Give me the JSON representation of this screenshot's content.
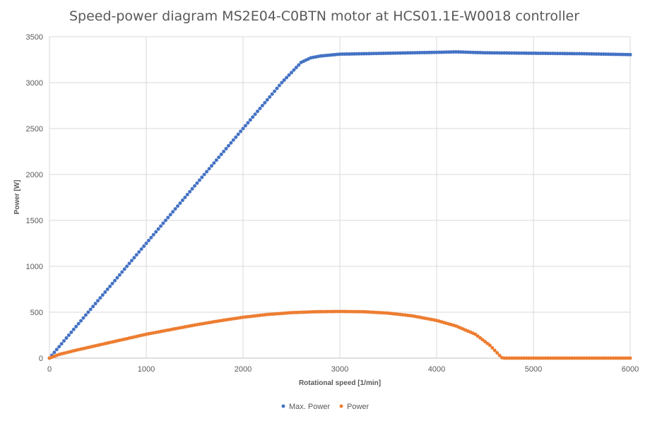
{
  "chart_data": {
    "type": "scatter",
    "title": "Speed-power diagram MS2E04-C0BTN motor at HCS01.1E-W0018 controller",
    "xlabel": "Rotational speed [1/min]",
    "ylabel": "Power [W]",
    "xlim": [
      0,
      6000
    ],
    "ylim": [
      0,
      3500
    ],
    "x_ticks": [
      "0",
      "1000",
      "2000",
      "3000",
      "4000",
      "5000",
      "6000"
    ],
    "y_ticks": [
      "0",
      "500",
      "1000",
      "1500",
      "2000",
      "2500",
      "3000",
      "3500"
    ],
    "grid": true,
    "legend_position": "bottom",
    "series": [
      {
        "name": "Max. Power",
        "color": "#4472C4",
        "points": [
          [
            0,
            0
          ],
          [
            200,
            250
          ],
          [
            400,
            500
          ],
          [
            600,
            750
          ],
          [
            800,
            1000
          ],
          [
            1000,
            1250
          ],
          [
            1200,
            1500
          ],
          [
            1400,
            1750
          ],
          [
            1600,
            2000
          ],
          [
            1800,
            2250
          ],
          [
            2000,
            2500
          ],
          [
            2200,
            2750
          ],
          [
            2400,
            3000
          ],
          [
            2600,
            3220
          ],
          [
            2700,
            3270
          ],
          [
            2800,
            3290
          ],
          [
            3000,
            3310
          ],
          [
            3500,
            3320
          ],
          [
            4000,
            3330
          ],
          [
            4200,
            3335
          ],
          [
            4500,
            3325
          ],
          [
            5000,
            3320
          ],
          [
            5500,
            3315
          ],
          [
            6000,
            3305
          ]
        ]
      },
      {
        "name": "Power",
        "color": "#ED7D31",
        "points": [
          [
            0,
            0
          ],
          [
            100,
            40
          ],
          [
            250,
            80
          ],
          [
            500,
            140
          ],
          [
            750,
            200
          ],
          [
            1000,
            260
          ],
          [
            1250,
            310
          ],
          [
            1500,
            360
          ],
          [
            1750,
            405
          ],
          [
            2000,
            445
          ],
          [
            2250,
            475
          ],
          [
            2500,
            495
          ],
          [
            2750,
            505
          ],
          [
            3000,
            508
          ],
          [
            3250,
            505
          ],
          [
            3500,
            490
          ],
          [
            3750,
            460
          ],
          [
            4000,
            410
          ],
          [
            4200,
            350
          ],
          [
            4400,
            260
          ],
          [
            4550,
            140
          ],
          [
            4650,
            30
          ],
          [
            4680,
            0
          ],
          [
            5000,
            0
          ],
          [
            5500,
            0
          ],
          [
            6000,
            0
          ]
        ]
      }
    ]
  }
}
